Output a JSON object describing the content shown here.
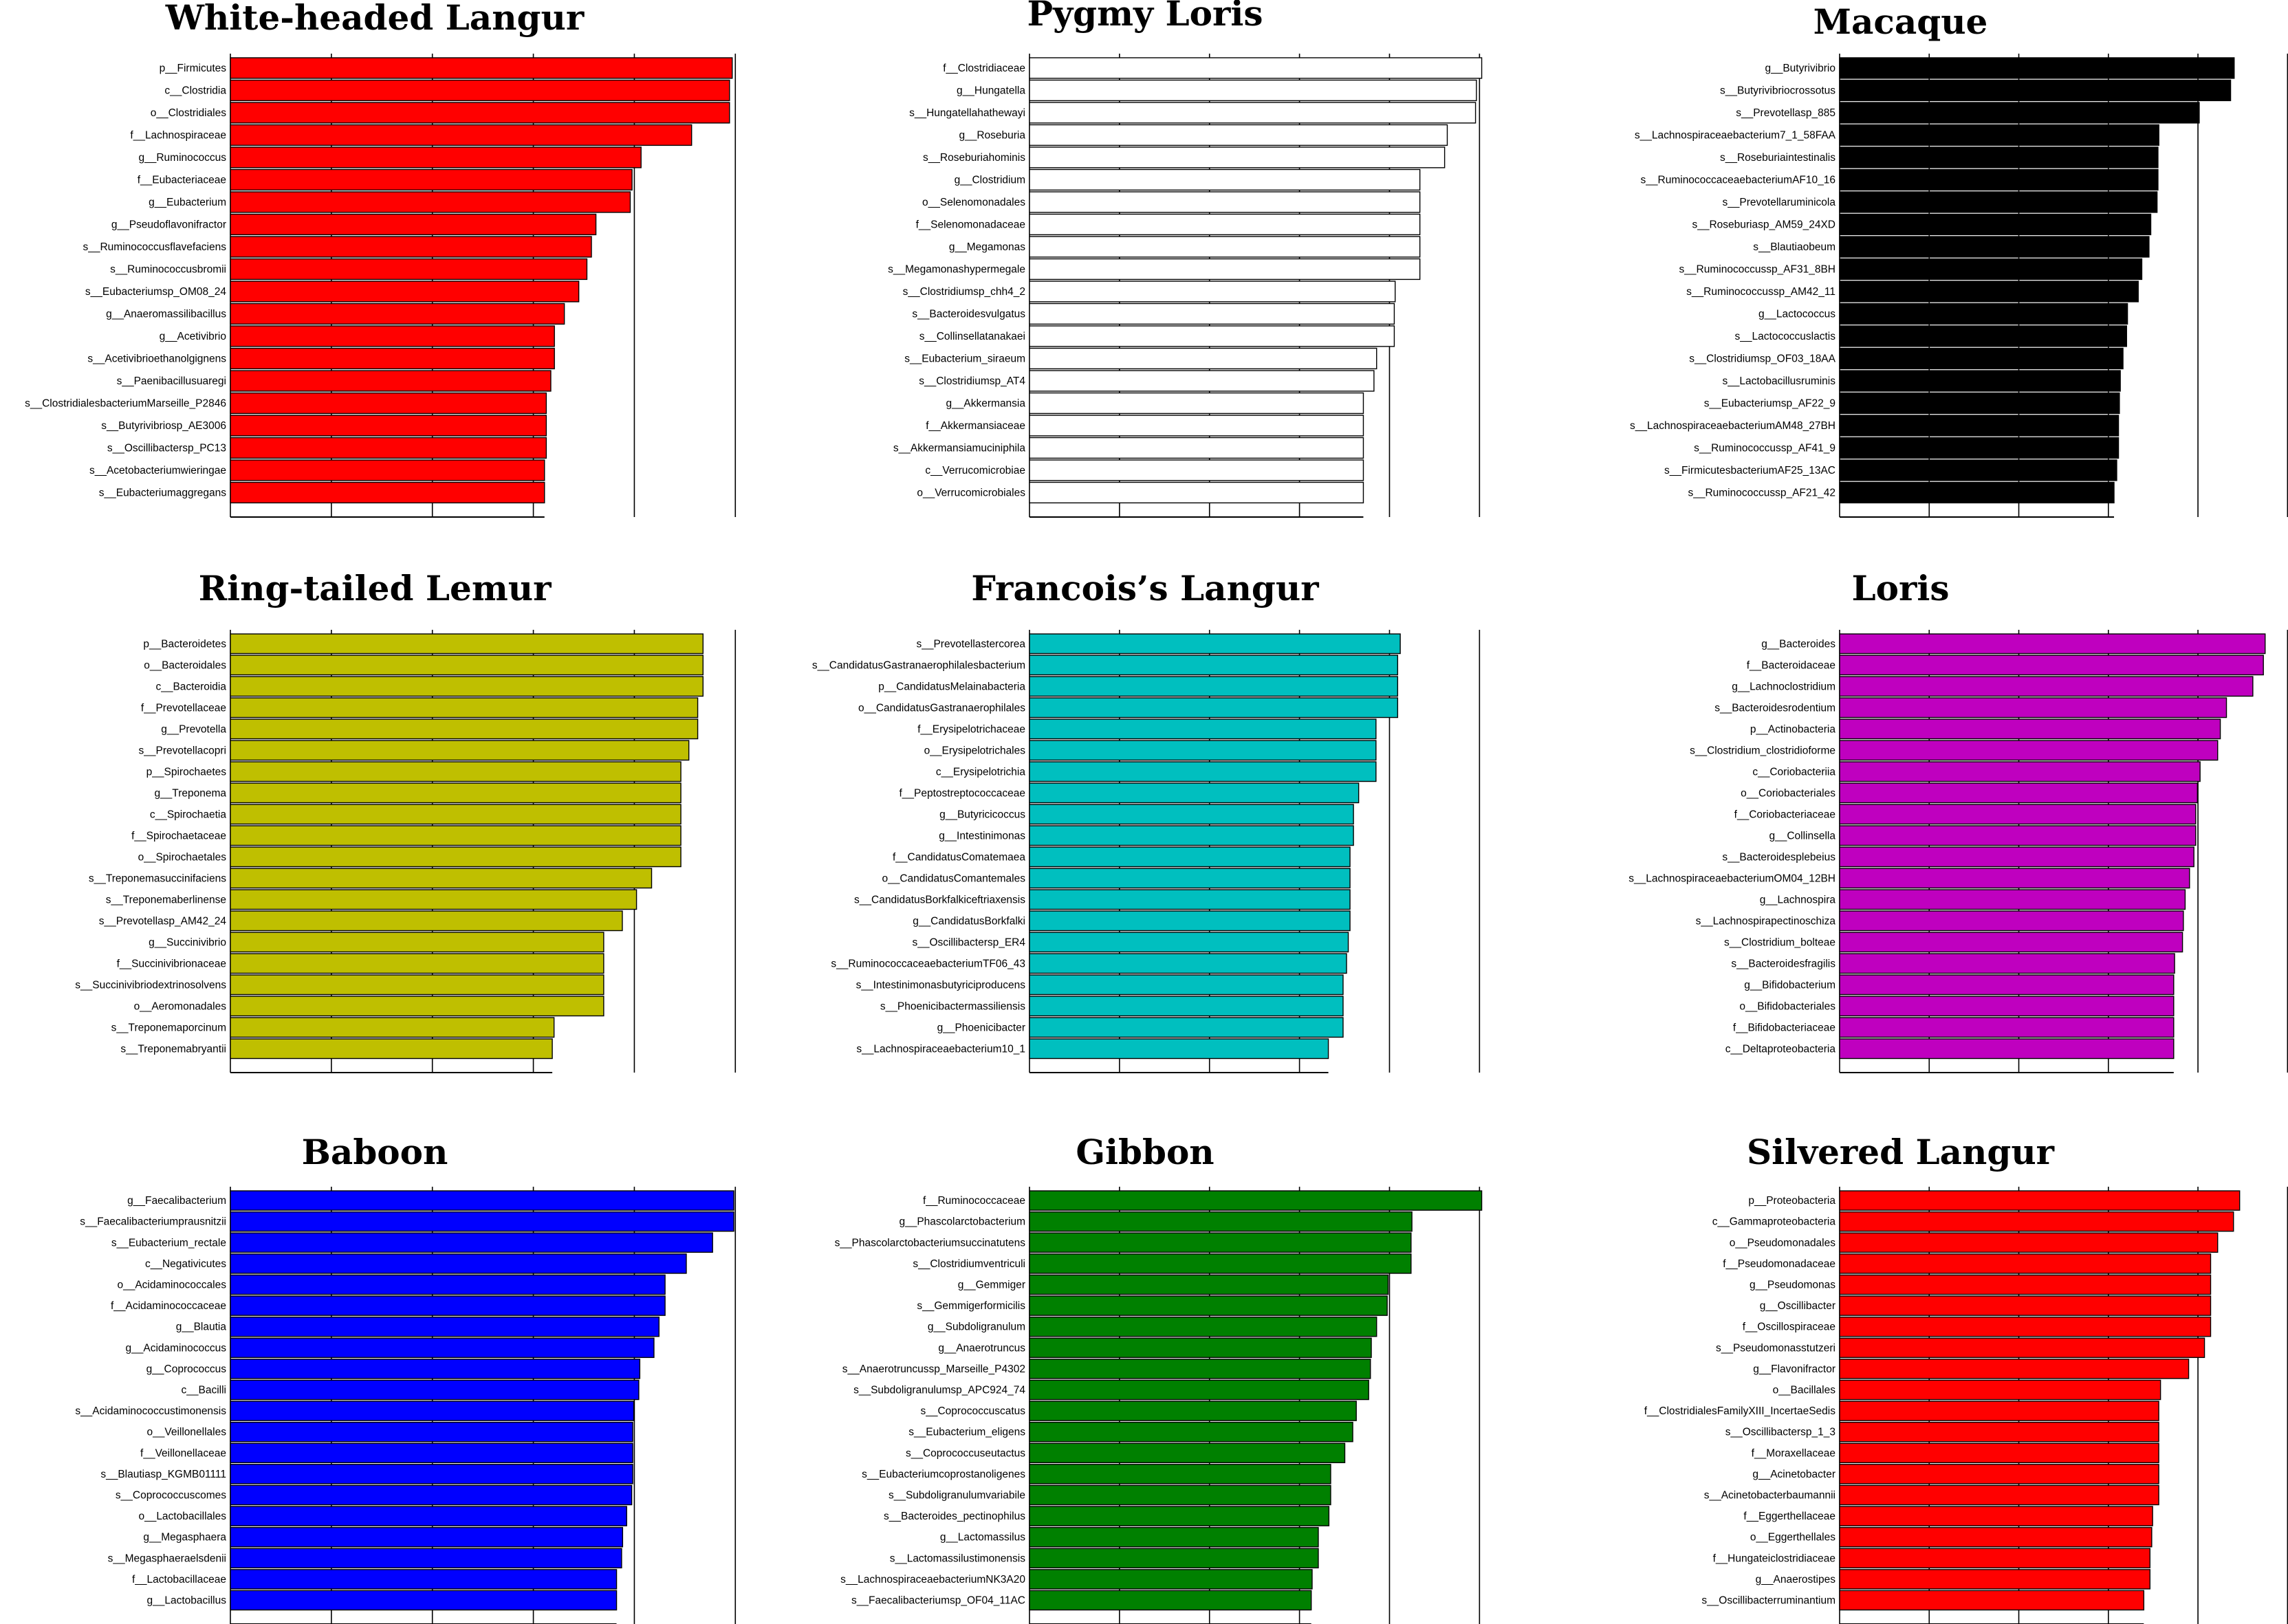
{
  "chart_data": [
    {
      "type": "bar",
      "title": "White-headed Langur",
      "color": "#ff0000",
      "xlim": [
        0,
        5.6
      ],
      "categories": [
        "p__Firmicutes",
        "c__Clostridia",
        "o__Clostridiales",
        "f__Lachnospiraceae",
        "g__Ruminococcus",
        "f__Eubacteriaceae",
        "g__Eubacterium",
        "g__Pseudoflavonifractor",
        "s__Ruminococcusflavefaciens",
        "s__Ruminococcusbromii",
        "s__Eubacteriumsp_OM08_24",
        "g__Anaeromassilibacillus",
        "g__Acetivibrio",
        "s__Acetivibrioethanolgignens",
        "s__Paenibacillusuaregi",
        "s__ClostridialesbacteriumMarseille_P2846",
        "s__Butyrivibriosp_AE3006",
        "s__Oscillibactersp_PC13",
        "s__Acetobacteriumwieringae",
        "s__Eubacteriumaggregans"
      ],
      "values": [
        5.56,
        5.53,
        5.53,
        5.11,
        4.55,
        4.45,
        4.43,
        4.05,
        4.0,
        3.95,
        3.86,
        3.7,
        3.59,
        3.59,
        3.55,
        3.5,
        3.5,
        3.5,
        3.48,
        3.48
      ]
    },
    {
      "type": "bar",
      "title": "Pygmy Loris",
      "color": "#ffffff",
      "xlim": [
        0,
        5.1
      ],
      "categories": [
        "f__Clostridiaceae",
        "g__Hungatella",
        "s__Hungatellahathewayi",
        "g__Roseburia",
        "s__Roseburiahominis",
        "g__Clostridium",
        "o__Selenomonadales",
        "f__Selenomonadaceae",
        "g__Megamonas",
        "s__Megamonashypermegale",
        "s__Clostridiumsp_chh4_2",
        "s__Bacteroidesvulgatus",
        "s__Collinsellatanakaei",
        "s__Eubacterium_siraeum",
        "s__Clostridiumsp_AT4",
        "g__Akkermansia",
        "f__Akkermansiaceae",
        "s__Akkermansiamuciniphila",
        "c__Verrucomicrobiae",
        "o__Verrucomicrobiales"
      ],
      "values": [
        5.12,
        5.06,
        5.05,
        4.73,
        4.7,
        4.42,
        4.42,
        4.42,
        4.42,
        4.42,
        4.14,
        4.13,
        4.13,
        3.93,
        3.9,
        3.78,
        3.78,
        3.78,
        3.78,
        3.78
      ]
    },
    {
      "type": "bar",
      "title": "Macaque",
      "color": "#000000",
      "xlim": [
        0,
        5.0
      ],
      "categories": [
        "g__Butyrivibrio",
        "s__Butyrivibriocrossotus",
        "s__Prevotellasp_885",
        "s__Lachnospiraceaebacterium7_1_58FAA",
        "s__Roseburiaintestinalis",
        "s__RuminococcaceaebacteriumAF10_16",
        "s__Prevotellaruminicola",
        "s__Roseburiasp_AM59_24XD",
        "s__Blautiaobeum",
        "s__Ruminococcussp_AF31_8BH",
        "s__Ruminococcussp_AM42_11",
        "g__Lactococcus",
        "s__Lactococcuslactis",
        "s__Clostridiumsp_OF03_18AA",
        "s__Lactobacillusruminis",
        "s__Eubacteriumsp_AF22_9",
        "s__LachnospiraceaebacteriumAM48_27BH",
        "s__Ruminococcussp_AF41_9",
        "s__FirmicutesbacteriumAF25_13AC",
        "s__Ruminococcussp_AF21_42"
      ],
      "values": [
        4.4,
        4.36,
        4.01,
        3.56,
        3.55,
        3.55,
        3.54,
        3.47,
        3.45,
        3.37,
        3.33,
        3.21,
        3.2,
        3.16,
        3.13,
        3.12,
        3.11,
        3.11,
        3.09,
        3.06
      ]
    },
    {
      "type": "bar",
      "title": "Ring-tailed Lemur",
      "color": "#bfbf00",
      "xlim": [
        0,
        5.7
      ],
      "categories": [
        "p__Bacteroidetes",
        "o__Bacteroidales",
        "c__Bacteroidia",
        "f__Prevotellaceae",
        "g__Prevotella",
        "s__Prevotellacopri",
        "p__Spirochaetes",
        "g__Treponema",
        "c__Spirochaetia",
        "f__Spirochaetaceae",
        "o__Spirochaetales",
        "s__Treponemasuccinifaciens",
        "s__Treponemaberlinense",
        "s__Prevotellasp_AM42_24",
        "g__Succinivibrio",
        "f__Succinivibrionaceae",
        "s__Succinivibriodextrinosolvens",
        "o__Aeromonadales",
        "s__Treponemaporcinum",
        "s__Treponemabryantii"
      ],
      "values": [
        5.33,
        5.33,
        5.33,
        5.27,
        5.27,
        5.17,
        5.08,
        5.08,
        5.08,
        5.08,
        5.08,
        4.75,
        4.58,
        4.42,
        4.21,
        4.21,
        4.21,
        4.21,
        3.65,
        3.63
      ]
    },
    {
      "type": "bar",
      "title": "Francois’s Langur",
      "color": "#00bfbf",
      "xlim": [
        0,
        5.2
      ],
      "categories": [
        "s__Prevotellastercorea",
        "s__CandidatusGastranaerophilalesbacterium",
        "p__CandidatusMelainabacteria",
        "o__CandidatusGastranaerophilales",
        "f__Erysipelotrichaceae",
        "o__Erysipelotrichales",
        "c__Erysipelotrichia",
        "f__Peptostreptococcaceae",
        "g__Butyricicoccus",
        "g__Intestinimonas",
        "f__CandidatusComatemaea",
        "o__CandidatusComantemales",
        "s__CandidatusBorkfalkiceftriaxensis",
        "g__CandidatusBorkfalki",
        "s__Oscillibactersp_ER4",
        "s__RuminococcaceaebacteriumTF06_43",
        "s__Intestinimonasbutyriciproducens",
        "s__Phoenicibactermassiliensis",
        "g__Phoenicibacter",
        "s__Lachnospiraceaebacterium10_1"
      ],
      "values": [
        4.28,
        4.25,
        4.25,
        4.25,
        4.0,
        4.0,
        4.0,
        3.8,
        3.74,
        3.74,
        3.7,
        3.7,
        3.7,
        3.7,
        3.68,
        3.66,
        3.62,
        3.62,
        3.62,
        3.45
      ]
    },
    {
      "type": "bar",
      "title": "Loris",
      "color": "#bf00bf",
      "xlim": [
        0,
        5.1
      ],
      "categories": [
        "g__Bacteroides",
        "f__Bacteroidaceae",
        "g__Lachnoclostridium",
        "s__Bacteroidesrodentium",
        "p__Actinobacteria",
        "s__Clostridium_clostridioforme",
        "c__Coriobacteriia",
        "o__Coriobacteriales",
        "f__Coriobacteriaceae",
        "g__Collinsella",
        "s__Bacteroidesplebeius",
        "s__LachnospiraceaebacteriumOM04_12BH",
        "g__Lachnospira",
        "s__Lachnospirapectinoschiza",
        "s__Clostridium_bolteae",
        "s__Bacteroidesfragilis",
        "g__Bifidobacterium",
        "o__Bifidobacteriales",
        "f__Bifidobacteriaceae",
        "c__Deltaproteobacteria"
      ],
      "values": [
        4.84,
        4.82,
        4.7,
        4.4,
        4.33,
        4.3,
        4.1,
        4.07,
        4.05,
        4.05,
        4.03,
        3.98,
        3.93,
        3.91,
        3.9,
        3.81,
        3.8,
        3.8,
        3.8,
        3.8
      ]
    },
    {
      "type": "bar",
      "title": "Baboon",
      "color": "#0000ff",
      "xlim": [
        0,
        5.0
      ],
      "categories": [
        "g__Faecalibacterium",
        "s__Faecalibacteriumprausnitzii",
        "s__Eubacterium_rectale",
        "c__Negativicutes",
        "o__Acidaminococcales",
        "f__Acidaminococcaceae",
        "g__Blautia",
        "g__Acidaminococcus",
        "g__Coprococcus",
        "c__Bacilli",
        "s__Acidaminococcustimonensis",
        "o__Veillonellales",
        "f__Veillonellaceae",
        "s__Blautiasp_KGMB01111",
        "s__Coprococcuscomes",
        "o__Lactobacillales",
        "g__Megasphaera",
        "s__Megasphaeraelsdenii",
        "f__Lactobacillaceae",
        "g__Lactobacillus"
      ],
      "values": [
        4.98,
        4.98,
        4.77,
        4.51,
        4.3,
        4.3,
        4.24,
        4.19,
        4.05,
        4.04,
        3.99,
        3.98,
        3.98,
        3.98,
        3.97,
        3.92,
        3.88,
        3.87,
        3.82,
        3.82
      ]
    },
    {
      "type": "bar",
      "title": "Gibbon",
      "color": "#008000",
      "xlim": [
        0,
        5.1
      ],
      "categories": [
        "f__Ruminococcaceae",
        "g__Phascolarctobacterium",
        "s__Phascolarctobacteriumsuccinatutens",
        "s__Clostridiumventriculi",
        "g__Gemmiger",
        "s__Gemmigerformicilis",
        "g__Subdoligranulum",
        "g__Anaerotruncus",
        "s__Anaerotruncussp_Marseille_P4302",
        "s__Subdoligranulumsp_APC924_74",
        "s__Coprococcuscatus",
        "s__Eubacterium_eligens",
        "s__Coprococcuseutactus",
        "s__Eubacteriumcoprostanoligenes",
        "s__Subdoligranulumvariabile",
        "s__Bacteroides_pectinophilus",
        "g__Lactomassilus",
        "s__Lactomassilustimonensis",
        "s__LachnospiraceaebacteriumNK3A20",
        "s__Faecalibacteriumsp_OF04_11AC"
      ],
      "values": [
        5.12,
        4.33,
        4.32,
        4.32,
        4.06,
        4.05,
        3.93,
        3.87,
        3.86,
        3.84,
        3.7,
        3.66,
        3.57,
        3.41,
        3.41,
        3.39,
        3.27,
        3.27,
        3.2,
        3.19
      ]
    },
    {
      "type": "bar",
      "title": "Silvered Langur",
      "color": "#ff0000",
      "xlim": [
        0,
        5.1
      ],
      "categories": [
        "p__Proteobacteria",
        "c__Gammaproteobacteria",
        "o__Pseudomonadales",
        "f__Pseudomonadaceae",
        "g__Pseudomonas",
        "g__Oscillibacter",
        "f__Oscillospiraceae",
        "s__Pseudomonasstutzeri",
        "g__Flavonifractor",
        "o__Bacillales",
        "f__ClostridialesFamilyXIII_IncertaeSedis",
        "s__Oscillibactersp_1_3",
        "f__Moraxellaceae",
        "g__Acinetobacter",
        "s__Acinetobacterbaumannii",
        "f__Eggerthellaceae",
        "o__Eggerthellales",
        "f__Hungateiclostridiaceae",
        "g__Anaerostipes",
        "s__Oscillibacterruminantium"
      ],
      "values": [
        4.55,
        4.48,
        4.3,
        4.22,
        4.22,
        4.22,
        4.22,
        4.15,
        3.97,
        3.65,
        3.63,
        3.63,
        3.63,
        3.63,
        3.63,
        3.56,
        3.55,
        3.53,
        3.53,
        3.46
      ]
    }
  ]
}
